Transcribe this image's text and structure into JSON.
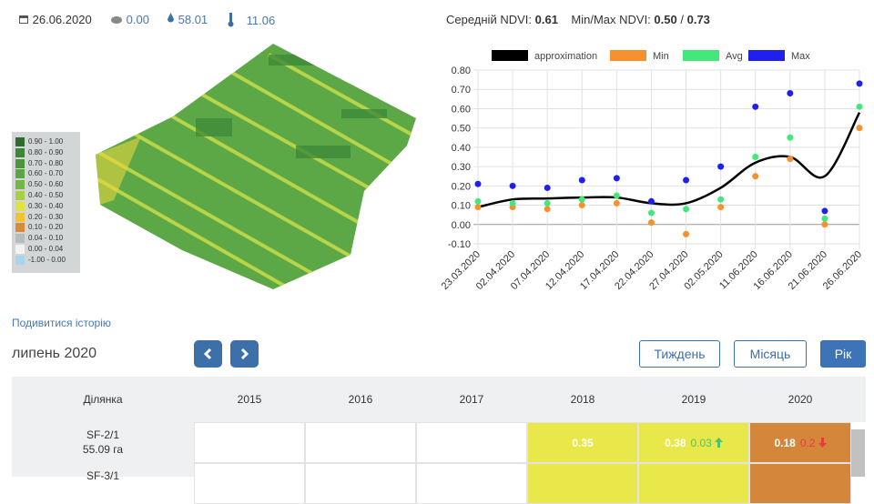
{
  "header": {
    "date": "26.06.2020",
    "precipitation": "0.00",
    "humidity": "58.01",
    "temperature": "11.06",
    "avg_label": "Середній NDVI:",
    "avg_value": "0.61",
    "minmax_label": "Min/Max NDVI:",
    "min_value": "0.50",
    "separator": "/",
    "max_value": "0.73"
  },
  "map_legend": [
    {
      "label": "0.90 - 1.00",
      "color": "#2f6b2f"
    },
    {
      "label": "0.80 - 0.90",
      "color": "#3c853a"
    },
    {
      "label": "0.70 - 0.80",
      "color": "#4a963c"
    },
    {
      "label": "0.60 - 0.70",
      "color": "#5aa544"
    },
    {
      "label": "0.50 - 0.60",
      "color": "#74b647"
    },
    {
      "label": "0.40 - 0.50",
      "color": "#a9cf45"
    },
    {
      "label": "0.30 - 0.40",
      "color": "#e2e23e"
    },
    {
      "label": "0.20 - 0.30",
      "color": "#f1c232"
    },
    {
      "label": "0.10 - 0.20",
      "color": "#d8893a"
    },
    {
      "label": "0.04 - 0.10",
      "color": "#b4bcbc"
    },
    {
      "label": "0.00 - 0.04",
      "color": "#f2f2f2"
    },
    {
      "label": "-1.00 - 0.00",
      "color": "#a9d4f0"
    }
  ],
  "chart_data": {
    "type": "line",
    "categories": [
      "23.03.2020",
      "02.04.2020",
      "07.04.2020",
      "12.04.2020",
      "17.04.2020",
      "22.04.2020",
      "27.04.2020",
      "02.05.2020",
      "11.06.2020",
      "16.06.2020",
      "21.06.2020",
      "26.06.2020"
    ],
    "series": [
      {
        "name": "approximation",
        "color": "#000000",
        "mode": "line",
        "values": [
          0.09,
          0.13,
          0.135,
          0.14,
          0.14,
          0.11,
          0.11,
          0.19,
          0.32,
          0.35,
          0.25,
          0.58
        ]
      },
      {
        "name": "Min",
        "color": "#f7902f",
        "mode": "markers",
        "values": [
          0.09,
          0.09,
          0.08,
          0.1,
          0.11,
          0.01,
          -0.05,
          0.09,
          0.25,
          0.34,
          0.0,
          0.5
        ]
      },
      {
        "name": "Avg",
        "color": "#44e87a",
        "mode": "markers",
        "values": [
          0.12,
          0.11,
          0.11,
          0.13,
          0.15,
          0.06,
          0.08,
          0.13,
          0.35,
          0.45,
          0.03,
          0.61
        ]
      },
      {
        "name": "Max",
        "color": "#2020ee",
        "mode": "markers",
        "values": [
          0.21,
          0.2,
          0.19,
          0.23,
          0.24,
          0.12,
          0.23,
          0.3,
          0.61,
          0.68,
          0.07,
          0.73
        ]
      }
    ],
    "ylim": [
      -0.1,
      0.8
    ],
    "yticks": [
      {
        "value": -0.1,
        "label": "-0.10"
      },
      {
        "value": 0,
        "label": "0.00"
      },
      {
        "value": 0.1,
        "label": "0.10"
      },
      {
        "value": 0.2,
        "label": "0.20"
      },
      {
        "value": 0.3,
        "label": "0.30"
      },
      {
        "value": 0.4,
        "label": "0.40"
      },
      {
        "value": 0.5,
        "label": "0.50"
      },
      {
        "value": 0.6,
        "label": "0.60"
      },
      {
        "value": 0.7,
        "label": "0.70"
      },
      {
        "value": 0.8,
        "label": "0.80"
      }
    ],
    "grid": true
  },
  "controls": {
    "history_link": "Подивитися історію",
    "period": "липень 2020",
    "week": "Тиждень",
    "month": "Місяць",
    "year": "Рік"
  },
  "table": {
    "headers": [
      "Ділянка",
      "2015",
      "2016",
      "2017",
      "2018",
      "2019",
      "2020"
    ],
    "rows": [
      {
        "name": "SF-2/1",
        "area": "55.09 га",
        "cells": [
          null,
          null,
          null,
          {
            "value": "0.35",
            "color": "#e8e84a"
          },
          {
            "value": "0.38",
            "change": "0.03",
            "trend": "up",
            "color": "#e8e84a"
          },
          {
            "value": "0.18",
            "change": "0.2",
            "trend": "down",
            "color": "#d4873a"
          }
        ]
      },
      {
        "name": "SF-3/1",
        "cells": [
          null,
          null,
          null,
          {
            "color": "#e8e84a"
          },
          {
            "color": "#e8e84a"
          },
          {
            "color": "#d4873a"
          }
        ]
      }
    ]
  }
}
